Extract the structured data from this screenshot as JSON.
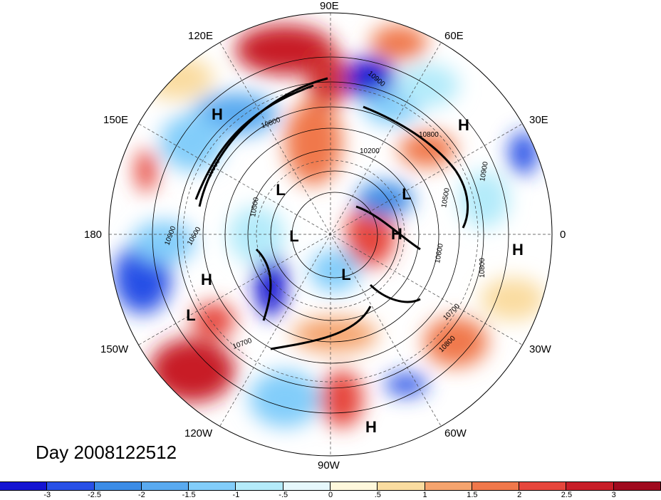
{
  "map": {
    "projection": "north polar stereographic",
    "title": "Day 2008122512",
    "longitude_labels": {
      "lon_90e": "90E",
      "lon_60e": "60E",
      "lon_120e": "120E",
      "lon_30e": "30E",
      "lon_150e": "150E",
      "lon_180": "180",
      "lon_0": "0",
      "lon_150w": "150W",
      "lon_30w": "30W",
      "lon_120w": "120W",
      "lon_60w": "60W",
      "lon_90w": "90W"
    },
    "pressure_centers": [
      "H",
      "H",
      "H",
      "H",
      "H",
      "H",
      "L",
      "L",
      "L",
      "L",
      "L"
    ],
    "contour_labels": [
      "10900",
      "10800",
      "10900",
      "10200",
      "10500",
      "10900",
      "10600",
      "10500",
      "10900",
      "10600",
      "10700",
      "10800",
      "10700",
      "10800",
      "10800"
    ],
    "colors": {
      "negative_strong": "#1a1acc",
      "positive_strong": "#a8101c",
      "neutral": "#ffffff"
    }
  },
  "colorbar": {
    "ticks": [
      "-3",
      "-2.5",
      "-2",
      "-1.5",
      "-1",
      "-.5",
      "0",
      ".5",
      "1",
      "1.5",
      "2",
      "2.5",
      "3"
    ],
    "colors": [
      "#1414d2",
      "#2850e6",
      "#3c8ce6",
      "#5aaaf0",
      "#82cdfa",
      "#b4ebfa",
      "#e6f8fc",
      "#fff8dc",
      "#fadca0",
      "#f5a46e",
      "#f0784b",
      "#e6463c",
      "#c81e28",
      "#a00a1e"
    ]
  }
}
